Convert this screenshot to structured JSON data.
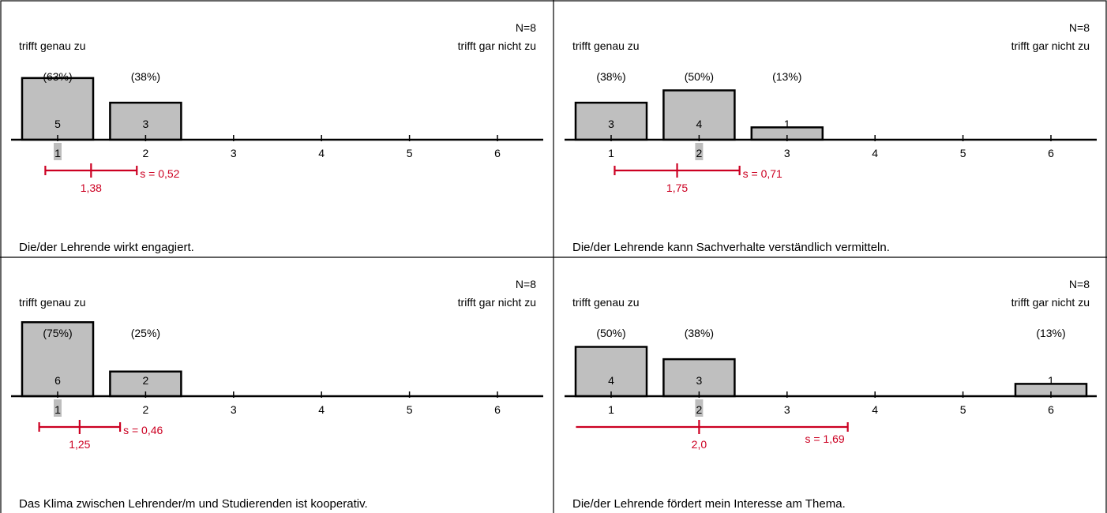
{
  "colors": {
    "bar": "#bfbfbf",
    "stat": "#cc0022",
    "median_marker": "#bdbdbd",
    "axis": "#000000"
  },
  "chart_data": [
    {
      "type": "bar",
      "n_label": "N=8",
      "left_anchor": "trifft genau zu",
      "right_anchor": "trifft gar nicht zu",
      "categories": [
        "1",
        "2",
        "3",
        "4",
        "5",
        "6"
      ],
      "counts": [
        5,
        3,
        0,
        0,
        0,
        0
      ],
      "percents": [
        "(63%)",
        "(38%)",
        "",
        "",
        "",
        ""
      ],
      "median": 1,
      "mean": 1.38,
      "mean_label": "1,38",
      "sd": 0.52,
      "sd_label": "s = 0,52",
      "question": "Die/der Lehrende wirkt engagiert."
    },
    {
      "type": "bar",
      "n_label": "N=8",
      "left_anchor": "trifft genau zu",
      "right_anchor": "trifft gar nicht zu",
      "categories": [
        "1",
        "2",
        "3",
        "4",
        "5",
        "6"
      ],
      "counts": [
        3,
        4,
        1,
        0,
        0,
        0
      ],
      "percents": [
        "(38%)",
        "(50%)",
        "(13%)",
        "",
        "",
        ""
      ],
      "median": 2,
      "mean": 1.75,
      "mean_label": "1,75",
      "sd": 0.71,
      "sd_label": "s = 0,71",
      "question": "Die/der Lehrende kann Sachverhalte verständlich vermitteln."
    },
    {
      "type": "bar",
      "n_label": "N=8",
      "left_anchor": "trifft genau zu",
      "right_anchor": "trifft gar nicht zu",
      "categories": [
        "1",
        "2",
        "3",
        "4",
        "5",
        "6"
      ],
      "counts": [
        6,
        2,
        0,
        0,
        0,
        0
      ],
      "percents": [
        "(75%)",
        "(25%)",
        "",
        "",
        "",
        ""
      ],
      "median": 1,
      "mean": 1.25,
      "mean_label": "1,25",
      "sd": 0.46,
      "sd_label": "s = 0,46",
      "question": "Das Klima zwischen Lehrender/m und Studierenden ist kooperativ."
    },
    {
      "type": "bar",
      "n_label": "N=8",
      "left_anchor": "trifft genau zu",
      "right_anchor": "trifft gar nicht zu",
      "categories": [
        "1",
        "2",
        "3",
        "4",
        "5",
        "6"
      ],
      "counts": [
        4,
        3,
        0,
        0,
        0,
        1
      ],
      "percents": [
        "(50%)",
        "(38%)",
        "",
        "",
        "",
        "(13%)"
      ],
      "median": 2,
      "mean": 2.0,
      "mean_label": "2,0",
      "sd": 1.69,
      "sd_label": "s = 1,69",
      "question": "Die/der Lehrende fördert mein Interesse am Thema."
    }
  ]
}
